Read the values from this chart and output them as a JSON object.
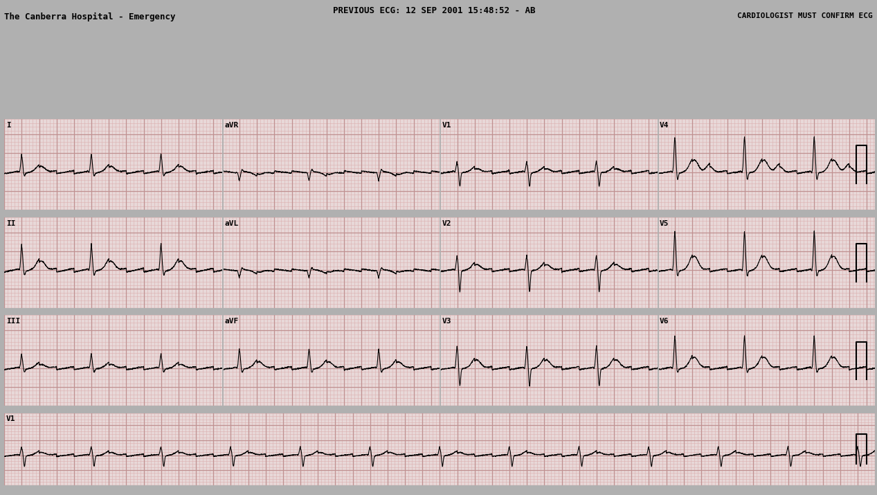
{
  "title_center": "PREVIOUS ECG: 12 SEP 2001 15:48:52 - AB",
  "title_left": "The Canberra Hospital - Emergency",
  "title_right": "CARDIOLOGIST MUST CONFIRM ECG",
  "bg_color": "#b0b0b0",
  "ecg_paper_color": "#e8d8d8",
  "grid_major_color": "#c09090",
  "grid_minor_color": "#dbb0b0",
  "ecg_color": "#000000",
  "figsize": [
    12.67,
    7.15
  ],
  "dpi": 100,
  "lead_rows": [
    [
      "I",
      "aVR",
      "V1",
      "V4"
    ],
    [
      "II",
      "aVL",
      "V2",
      "V5"
    ],
    [
      "III",
      "aVF",
      "V3",
      "V6"
    ],
    [
      "V1"
    ]
  ],
  "fs": 500,
  "hr_bpm": 75,
  "flutter_rate": 300,
  "dur_short": 2.5,
  "dur_long": 10.0
}
